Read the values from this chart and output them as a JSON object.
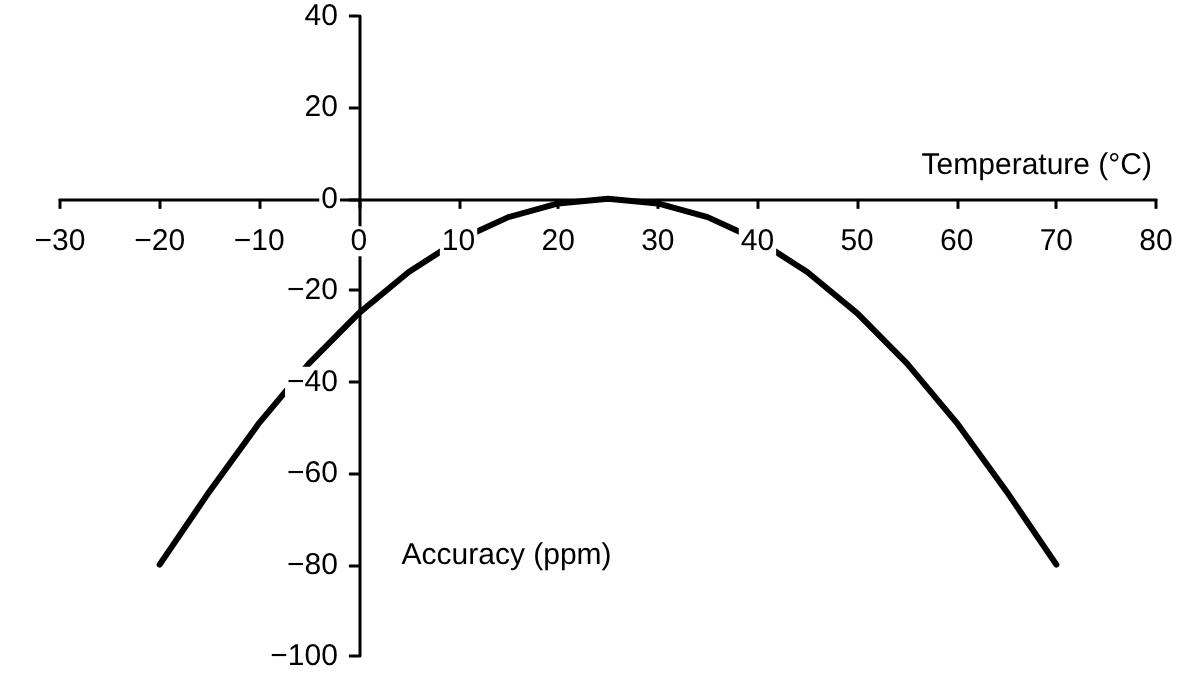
{
  "chart_data": {
    "type": "line",
    "xlabel": "Temperature (°C)",
    "ylabel": "Accuracy (ppm)",
    "x": [
      -20,
      -15,
      -10,
      -5,
      0,
      5,
      10,
      15,
      20,
      25,
      30,
      35,
      40,
      45,
      50,
      55,
      60,
      65,
      70
    ],
    "series": [
      {
        "color": "#000000",
        "values": [
          -80,
          -64,
          -49,
          -36,
          -25,
          -16,
          -9,
          -4,
          -1,
          0,
          -1,
          -4,
          -9,
          -16,
          -25,
          -36,
          -49,
          -64,
          -80
        ]
      }
    ],
    "xlim": [
      -30,
      80
    ],
    "xticks": [
      -30,
      -20,
      -10,
      0,
      10,
      20,
      30,
      40,
      50,
      60,
      70,
      80
    ],
    "ylim": [
      -100,
      40
    ],
    "yticks": [
      -100,
      -80,
      -60,
      -40,
      -20,
      0,
      20,
      40
    ],
    "marker": "none",
    "line_style": "solid"
  }
}
